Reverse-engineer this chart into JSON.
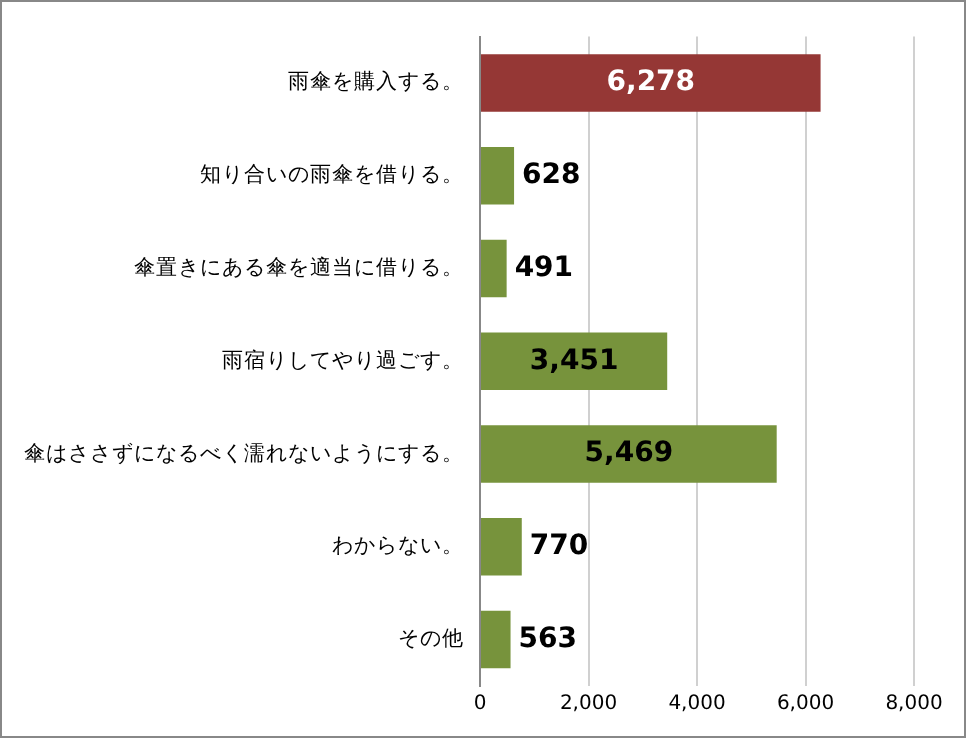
{
  "chart_data": {
    "type": "bar",
    "orientation": "horizontal",
    "categories": [
      "雨傘を購入する。",
      "知り合いの雨傘を借りる。",
      "傘置きにある傘を適当に借りる。",
      "雨宿りしてやり過ごす。",
      "傘はささずになるべく濡れないようにする。",
      "わからない。",
      "その他"
    ],
    "values": [
      6278,
      628,
      491,
      3451,
      5469,
      770,
      563
    ],
    "colors": [
      "#953735",
      "#77933c",
      "#77933c",
      "#77933c",
      "#77933c",
      "#77933c",
      "#77933c"
    ],
    "value_labels": [
      "6,278",
      "628",
      "491",
      "3,451",
      "5,469",
      "770",
      "563"
    ],
    "xlim": [
      0,
      8000
    ],
    "xticks": [
      0,
      {
        "value": 2000,
        "label": "2,000"
      },
      {
        "value": 4000,
        "label": "4,000"
      },
      {
        "value": 6000,
        "label": "6,000"
      },
      {
        "value": 8000,
        "label": "8,000"
      }
    ],
    "grid": "x",
    "legend": false
  }
}
